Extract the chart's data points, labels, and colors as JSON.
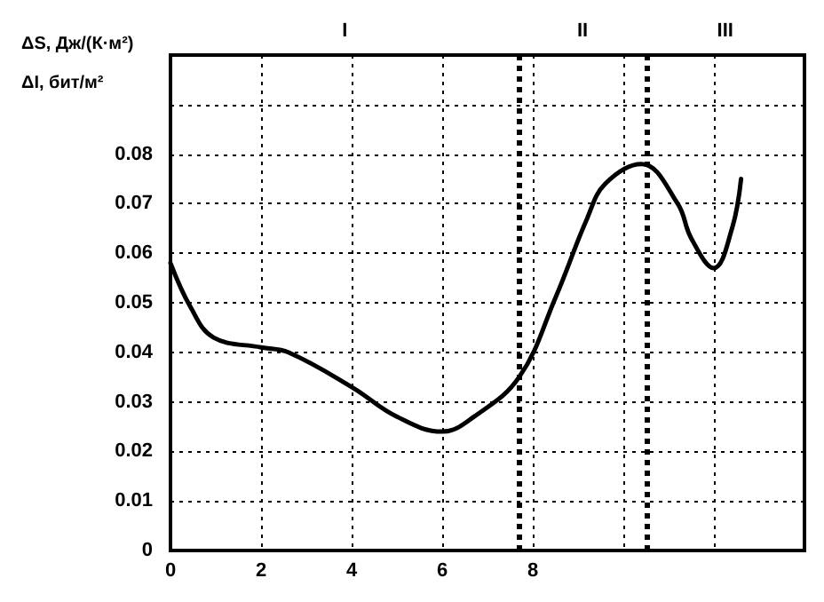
{
  "chart_data": {
    "type": "line",
    "ylabel": "ΔS, Дж/(К·м²)\nΔI, бит/м²",
    "x": [
      0,
      0.45,
      0.95,
      2,
      2.6,
      4,
      5,
      6,
      6.7,
      7.7,
      8.5,
      9.2,
      9.6,
      10.4,
      11.2,
      11.5,
      12,
      12.4,
      12.6
    ],
    "series": [
      {
        "color": "#000000",
        "values": [
          0.058,
          0.049,
          0.043,
          0.041,
          0.04,
          0.033,
          0.027,
          0.024,
          0.027,
          0.035,
          0.051,
          0.067,
          0.074,
          0.078,
          0.07,
          0.063,
          0.057,
          0.065,
          0.075
        ]
      }
    ],
    "xlim": [
      0,
      14
    ],
    "xticks": [
      0,
      2,
      4,
      6,
      8,
      {
        "value": 10,
        "label": null
      },
      {
        "value": 12,
        "label": null
      }
    ],
    "ylim": [
      0,
      0.1
    ],
    "yticks": [
      0,
      0.01,
      0.02,
      0.03,
      0.04,
      0.05,
      0.06,
      0.07,
      0.08,
      {
        "value": 0.09,
        "label": null
      },
      {
        "value": 0.1,
        "label": null
      }
    ],
    "ref_lines": [
      {
        "axis": "x",
        "value": 7.7,
        "color": "#000000",
        "line_style": "dotted"
      },
      {
        "axis": "x",
        "value": 10.5,
        "color": "#000000",
        "line_style": "dotted"
      }
    ],
    "annotations": [
      "I",
      "II",
      "III"
    ],
    "grid": true,
    "marker": "none",
    "line_style": "solid"
  }
}
